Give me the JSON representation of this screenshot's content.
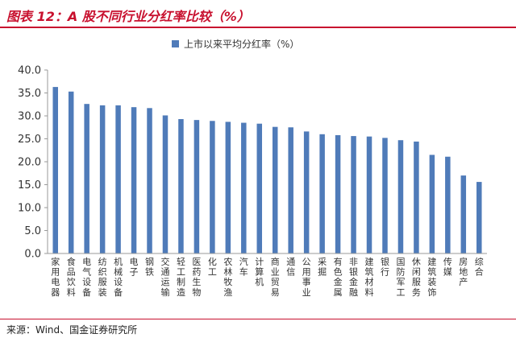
{
  "header": {
    "title": "图表 12：A 股不同行业分红率比较（%）"
  },
  "footer": {
    "source": "来源：Wind、国金证券研究所"
  },
  "chart_data": {
    "type": "bar",
    "title": "",
    "xlabel": "",
    "ylabel": "",
    "ylim": [
      0,
      40
    ],
    "yticks": [
      "0.0",
      "5.0",
      "10.0",
      "15.0",
      "20.0",
      "25.0",
      "30.0",
      "35.0",
      "40.0"
    ],
    "legend_position": "top",
    "bar_color": "#4f7bb9",
    "categories": [
      "家用电器",
      "食品饮料",
      "电气设备",
      "纺织服装",
      "机械设备",
      "电子",
      "钢铁",
      "交通运输",
      "轻工制造",
      "医药生物",
      "化工",
      "农林牧渔",
      "汽车",
      "计算机",
      "商业贸易",
      "通信",
      "公用事业",
      "采掘",
      "有色金属",
      "非银金融",
      "建筑材料",
      "银行",
      "国防军工",
      "休闲服务",
      "建筑装饰",
      "传媒",
      "房地产",
      "综合"
    ],
    "series": [
      {
        "name": "上市以来平均分红率（%）",
        "values": [
          36.3,
          35.3,
          32.6,
          32.3,
          32.3,
          31.9,
          31.7,
          30.1,
          29.3,
          29.1,
          28.9,
          28.7,
          28.5,
          28.3,
          27.6,
          27.5,
          26.6,
          26.0,
          25.8,
          25.6,
          25.5,
          25.2,
          24.7,
          24.4,
          21.5,
          21.1,
          17.0,
          15.6
        ]
      }
    ]
  }
}
